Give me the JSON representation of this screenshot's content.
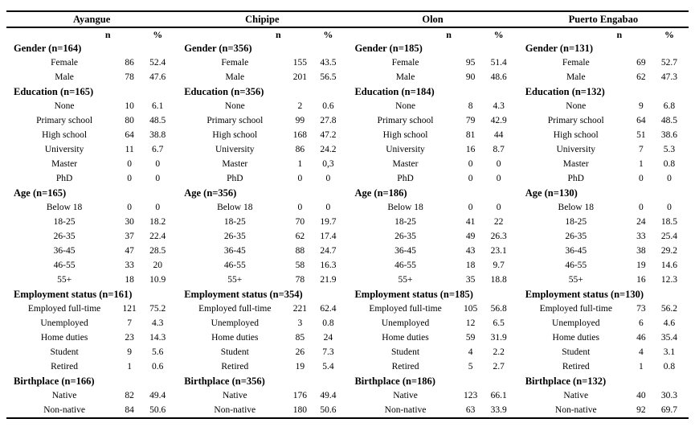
{
  "page": {
    "background_color": "#ffffff",
    "text_color": "#000000",
    "rule_color": "#000000"
  },
  "table": {
    "groups": [
      {
        "name": "Ayangue"
      },
      {
        "name": "Chipipe"
      },
      {
        "name": "Olon"
      },
      {
        "name": "Puerto Engabao"
      }
    ],
    "column_headers": {
      "n": "n",
      "percent": "%"
    },
    "sections": [
      {
        "id": "gender",
        "headers": [
          "Gender (n=164)",
          "Gender (n=356)",
          "Gender (n=185)",
          "Gender (n=131)"
        ],
        "rows": [
          {
            "label": "Female",
            "cells": [
              {
                "n": "86",
                "pct": "52.4"
              },
              {
                "n": "155",
                "pct": "43.5"
              },
              {
                "n": "95",
                "pct": "51.4"
              },
              {
                "n": "69",
                "pct": "52.7"
              }
            ]
          },
          {
            "label": "Male",
            "cells": [
              {
                "n": "78",
                "pct": "47.6"
              },
              {
                "n": "201",
                "pct": "56.5"
              },
              {
                "n": "90",
                "pct": "48.6"
              },
              {
                "n": "62",
                "pct": "47.3"
              }
            ]
          }
        ]
      },
      {
        "id": "education",
        "headers": [
          "Education (n=165)",
          "Education (n=356)",
          "Education (n=184)",
          "Education (n=132)"
        ],
        "rows": [
          {
            "label": "None",
            "cells": [
              {
                "n": "10",
                "pct": "6.1"
              },
              {
                "n": "2",
                "pct": "0.6"
              },
              {
                "n": "8",
                "pct": "4.3"
              },
              {
                "n": "9",
                "pct": "6.8"
              }
            ]
          },
          {
            "label": "Primary school",
            "cells": [
              {
                "n": "80",
                "pct": "48.5"
              },
              {
                "n": "99",
                "pct": "27.8"
              },
              {
                "n": "79",
                "pct": "42.9"
              },
              {
                "n": "64",
                "pct": "48.5"
              }
            ]
          },
          {
            "label": "High school",
            "cells": [
              {
                "n": "64",
                "pct": "38.8"
              },
              {
                "n": "168",
                "pct": "47.2"
              },
              {
                "n": "81",
                "pct": "44"
              },
              {
                "n": "51",
                "pct": "38.6"
              }
            ]
          },
          {
            "label": "University",
            "cells": [
              {
                "n": "11",
                "pct": "6.7"
              },
              {
                "n": "86",
                "pct": "24.2"
              },
              {
                "n": "16",
                "pct": "8.7"
              },
              {
                "n": "7",
                "pct": "5.3"
              }
            ]
          },
          {
            "label": "Master",
            "cells": [
              {
                "n": "0",
                "pct": "0"
              },
              {
                "n": "1",
                "pct": "0,3"
              },
              {
                "n": "0",
                "pct": "0"
              },
              {
                "n": "1",
                "pct": "0.8"
              }
            ]
          },
          {
            "label": "PhD",
            "cells": [
              {
                "n": "0",
                "pct": "0"
              },
              {
                "n": "0",
                "pct": "0"
              },
              {
                "n": "0",
                "pct": "0"
              },
              {
                "n": "0",
                "pct": "0"
              }
            ]
          }
        ]
      },
      {
        "id": "age",
        "headers": [
          "Age (n=165)",
          "Age (n=356)",
          "Age (n=186)",
          "Age (n=130)"
        ],
        "rows": [
          {
            "label": "Below 18",
            "cells": [
              {
                "n": "0",
                "pct": "0"
              },
              {
                "n": "0",
                "pct": "0"
              },
              {
                "n": "0",
                "pct": "0"
              },
              {
                "n": "0",
                "pct": "0"
              }
            ]
          },
          {
            "label": "18-25",
            "cells": [
              {
                "n": "30",
                "pct": "18.2"
              },
              {
                "n": "70",
                "pct": "19.7"
              },
              {
                "n": "41",
                "pct": "22"
              },
              {
                "n": "24",
                "pct": "18.5"
              }
            ]
          },
          {
            "label": "26-35",
            "cells": [
              {
                "n": "37",
                "pct": "22.4"
              },
              {
                "n": "62",
                "pct": "17.4"
              },
              {
                "n": "49",
                "pct": "26.3"
              },
              {
                "n": "33",
                "pct": "25.4"
              }
            ]
          },
          {
            "label": "36-45",
            "cells": [
              {
                "n": "47",
                "pct": "28.5"
              },
              {
                "n": "88",
                "pct": "24.7"
              },
              {
                "n": "43",
                "pct": "23.1"
              },
              {
                "n": "38",
                "pct": "29.2"
              }
            ]
          },
          {
            "label": "46-55",
            "cells": [
              {
                "n": "33",
                "pct": "20"
              },
              {
                "n": "58",
                "pct": "16.3"
              },
              {
                "n": "18",
                "pct": "9.7"
              },
              {
                "n": "19",
                "pct": "14.6"
              }
            ]
          },
          {
            "label": "55+",
            "cells": [
              {
                "n": "18",
                "pct": "10.9"
              },
              {
                "n": "78",
                "pct": "21.9"
              },
              {
                "n": "35",
                "pct": "18.8"
              },
              {
                "n": "16",
                "pct": "12.3"
              }
            ]
          }
        ]
      },
      {
        "id": "employment",
        "headers": [
          "Employment status (n=161)",
          "Employment status (n=354)",
          "Employment status (n=185)",
          "Employment status (n=130)"
        ],
        "rows": [
          {
            "label": "Employed full-time",
            "cells": [
              {
                "n": "121",
                "pct": "75.2"
              },
              {
                "n": "221",
                "pct": "62.4"
              },
              {
                "n": "105",
                "pct": "56.8"
              },
              {
                "n": "73",
                "pct": "56.2"
              }
            ]
          },
          {
            "label": "Unemployed",
            "cells": [
              {
                "n": "7",
                "pct": "4.3"
              },
              {
                "n": "3",
                "pct": "0.8"
              },
              {
                "n": "12",
                "pct": "6.5"
              },
              {
                "n": "6",
                "pct": "4.6"
              }
            ]
          },
          {
            "label": "Home duties",
            "cells": [
              {
                "n": "23",
                "pct": "14.3"
              },
              {
                "n": "85",
                "pct": "24"
              },
              {
                "n": "59",
                "pct": "31.9"
              },
              {
                "n": "46",
                "pct": "35.4"
              }
            ]
          },
          {
            "label": "Student",
            "cells": [
              {
                "n": "9",
                "pct": "5.6"
              },
              {
                "n": "26",
                "pct": "7.3"
              },
              {
                "n": "4",
                "pct": "2.2"
              },
              {
                "n": "4",
                "pct": "3.1"
              }
            ]
          },
          {
            "label": "Retired",
            "cells": [
              {
                "n": "1",
                "pct": "0.6"
              },
              {
                "n": "19",
                "pct": "5.4"
              },
              {
                "n": "5",
                "pct": "2.7"
              },
              {
                "n": "1",
                "pct": "0.8"
              }
            ]
          }
        ]
      },
      {
        "id": "birthplace",
        "headers": [
          "Birthplace (n=166)",
          "Birthplace (n=356)",
          "Birthplace (n=186)",
          "Birthplace (n=132)"
        ],
        "rows": [
          {
            "label": "Native",
            "cells": [
              {
                "n": "82",
                "pct": "49.4"
              },
              {
                "n": "176",
                "pct": "49.4"
              },
              {
                "n": "123",
                "pct": "66.1"
              },
              {
                "n": "40",
                "pct": "30.3"
              }
            ]
          },
          {
            "label": "Non-native",
            "cells": [
              {
                "n": "84",
                "pct": "50.6"
              },
              {
                "n": "180",
                "pct": "50.6"
              },
              {
                "n": "63",
                "pct": "33.9"
              },
              {
                "n": "92",
                "pct": "69.7"
              }
            ]
          }
        ]
      }
    ]
  }
}
